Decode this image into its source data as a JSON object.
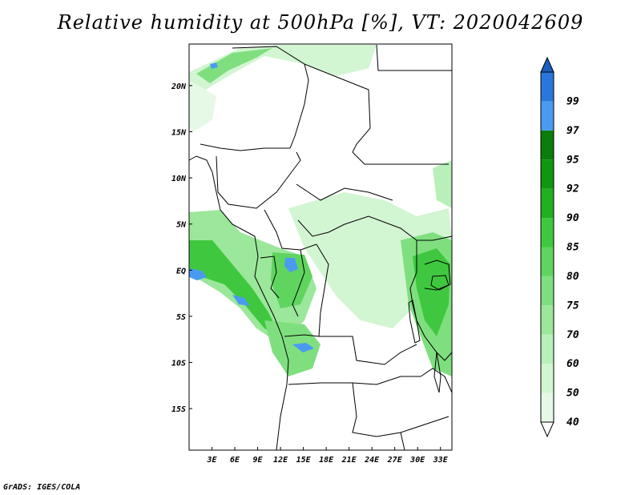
{
  "title": "Relative humidity at 500hPa [%], VT: 2020042609",
  "credit": "GrADS: IGES/COLA",
  "map": {
    "region": "Central Africa",
    "lon_range": [
      0,
      34.5
    ],
    "lat_range": [
      -19.5,
      24.5
    ],
    "x_ticks": [
      {
        "value": 3,
        "label": "3E"
      },
      {
        "value": 6,
        "label": "6E"
      },
      {
        "value": 9,
        "label": "9E"
      },
      {
        "value": 12,
        "label": "12E"
      },
      {
        "value": 15,
        "label": "15E"
      },
      {
        "value": 18,
        "label": "18E"
      },
      {
        "value": 21,
        "label": "21E"
      },
      {
        "value": 24,
        "label": "24E"
      },
      {
        "value": 27,
        "label": "27E"
      },
      {
        "value": 30,
        "label": "30E"
      },
      {
        "value": 33,
        "label": "33E"
      }
    ],
    "y_ticks": [
      {
        "value": 20,
        "label": "20N"
      },
      {
        "value": 15,
        "label": "15N"
      },
      {
        "value": 10,
        "label": "10N"
      },
      {
        "value": 5,
        "label": "5N"
      },
      {
        "value": 0,
        "label": "EQ"
      },
      {
        "value": -5,
        "label": "5S"
      },
      {
        "value": -10,
        "label": "10S"
      },
      {
        "value": -15,
        "label": "15S"
      }
    ]
  },
  "colorbar": {
    "levels": [
      {
        "label": "40",
        "color": "#e6f9e6"
      },
      {
        "label": "50",
        "color": "#d2f5d2"
      },
      {
        "label": "60",
        "color": "#b9efb9"
      },
      {
        "label": "70",
        "color": "#9be79b"
      },
      {
        "label": "75",
        "color": "#7fdf7f"
      },
      {
        "label": "80",
        "color": "#5fd45f"
      },
      {
        "label": "85",
        "color": "#3fc83f"
      },
      {
        "label": "90",
        "color": "#20b020"
      },
      {
        "label": "92",
        "color": "#119611"
      },
      {
        "label": "95",
        "color": "#0a7d0a"
      },
      {
        "label": "97",
        "color": "#4a9bf0"
      },
      {
        "label": "99",
        "color": "#2a77dc"
      }
    ],
    "top_color": "#1a5fc0"
  }
}
